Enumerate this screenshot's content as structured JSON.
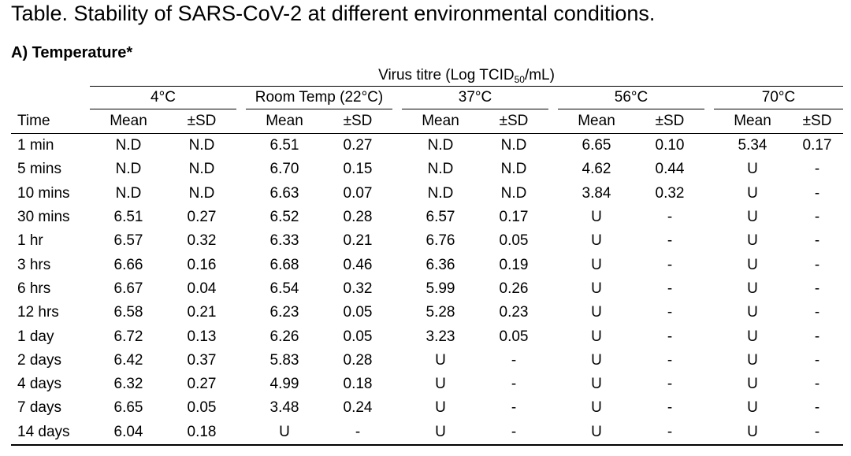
{
  "title": "Table. Stability of SARS-CoV-2 at different environmental conditions.",
  "section": "A) Temperature*",
  "header": {
    "virus_titre_prefix": "Virus titre (Log TCID",
    "virus_titre_sub": "50",
    "virus_titre_suffix": "/mL)",
    "temps": [
      "4°C",
      "Room Temp (22°C)",
      "37°C",
      "56°C",
      "70°C"
    ],
    "time_label": "Time",
    "mean_label": "Mean",
    "sd_label": "±SD"
  },
  "rows": [
    {
      "time": "1 min",
      "cells": [
        "N.D",
        "N.D",
        "6.51",
        "0.27",
        "N.D",
        "N.D",
        "6.65",
        "0.10",
        "5.34",
        "0.17"
      ]
    },
    {
      "time": "5 mins",
      "cells": [
        "N.D",
        "N.D",
        "6.70",
        "0.15",
        "N.D",
        "N.D",
        "4.62",
        "0.44",
        "U",
        "-"
      ]
    },
    {
      "time": "10 mins",
      "cells": [
        "N.D",
        "N.D",
        "6.63",
        "0.07",
        "N.D",
        "N.D",
        "3.84",
        "0.32",
        "U",
        "-"
      ]
    },
    {
      "time": "30 mins",
      "cells": [
        "6.51",
        "0.27",
        "6.52",
        "0.28",
        "6.57",
        "0.17",
        "U",
        "-",
        "U",
        "-"
      ]
    },
    {
      "time": "1 hr",
      "cells": [
        "6.57",
        "0.32",
        "6.33",
        "0.21",
        "6.76",
        "0.05",
        "U",
        "-",
        "U",
        "-"
      ]
    },
    {
      "time": "3 hrs",
      "cells": [
        "6.66",
        "0.16",
        "6.68",
        "0.46",
        "6.36",
        "0.19",
        "U",
        "-",
        "U",
        "-"
      ]
    },
    {
      "time": "6 hrs",
      "cells": [
        "6.67",
        "0.04",
        "6.54",
        "0.32",
        "5.99",
        "0.26",
        "U",
        "-",
        "U",
        "-"
      ]
    },
    {
      "time": "12 hrs",
      "cells": [
        "6.58",
        "0.21",
        "6.23",
        "0.05",
        "5.28",
        "0.23",
        "U",
        "-",
        "U",
        "-"
      ]
    },
    {
      "time": "1 day",
      "cells": [
        "6.72",
        "0.13",
        "6.26",
        "0.05",
        "3.23",
        "0.05",
        "U",
        "-",
        "U",
        "-"
      ]
    },
    {
      "time": "2 days",
      "cells": [
        "6.42",
        "0.37",
        "5.83",
        "0.28",
        "U",
        "-",
        "U",
        "-",
        "U",
        "-"
      ]
    },
    {
      "time": "4 days",
      "cells": [
        "6.32",
        "0.27",
        "4.99",
        "0.18",
        "U",
        "-",
        "U",
        "-",
        "U",
        "-"
      ]
    },
    {
      "time": "7 days",
      "cells": [
        "6.65",
        "0.05",
        "3.48",
        "0.24",
        "U",
        "-",
        "U",
        "-",
        "U",
        "-"
      ]
    },
    {
      "time": "14 days",
      "cells": [
        "6.04",
        "0.18",
        "U",
        "-",
        "U",
        "-",
        "U",
        "-",
        "U",
        "-"
      ]
    }
  ]
}
